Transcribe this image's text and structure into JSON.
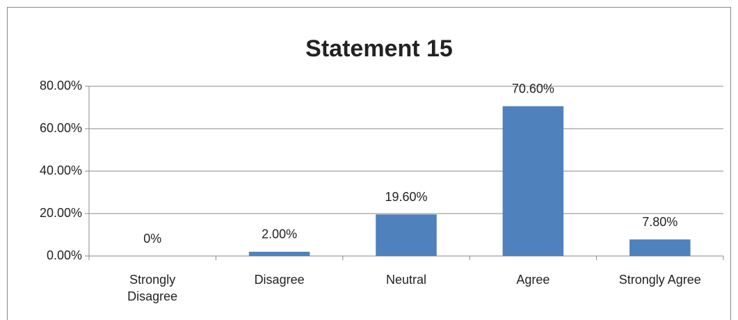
{
  "chart_data": {
    "type": "bar",
    "title": "Statement 15",
    "categories": [
      "Strongly Disagree",
      "Disagree",
      "Neutral",
      "Agree",
      "Strongly Agree"
    ],
    "values": [
      0,
      2,
      19.6,
      70.6,
      7.8
    ],
    "value_labels": [
      "0%",
      "2.00%",
      "19.60%",
      "70.60%",
      "7.80%"
    ],
    "color": "#4f81bd",
    "ylim": [
      0,
      80
    ],
    "yticks": [
      {
        "value": 0,
        "label": "0.00%"
      },
      {
        "value": 20,
        "label": "20.00%"
      },
      {
        "value": 40,
        "label": "40.00%"
      },
      {
        "value": 60,
        "label": "60.00%"
      },
      {
        "value": 80,
        "label": "80.00%"
      }
    ],
    "grid": true
  }
}
